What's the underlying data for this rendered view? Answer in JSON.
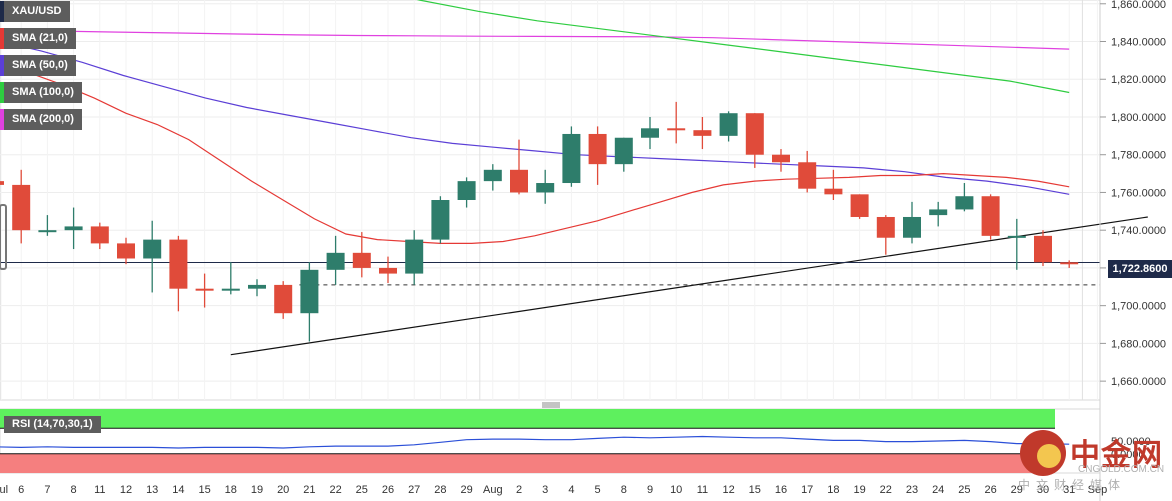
{
  "legend": {
    "symbol": "XAU/USD",
    "sma21": "SMA (21,0)",
    "sma50": "SMA (50,0)",
    "sma100": "SMA (100,0)",
    "sma200": "SMA (200,0)"
  },
  "rsi_label": "RSI (14,70,30,1)",
  "last_price_label": "1,722.8600",
  "colors": {
    "up": "#2e7d6b",
    "down": "#e04b3a",
    "sma21": "#e53935",
    "sma50": "#5b3fd6",
    "sma100": "#2ecc40",
    "sma200": "#e041e0",
    "rsi_line": "#2b4fd8",
    "overbought_zone": "#5ef05e",
    "oversold_zone": "#f57f7f"
  },
  "watermark": {
    "cn": "中金网",
    "en": "CNGOLD.COM.CN",
    "sub": "中文财经媒体"
  },
  "chart_data": {
    "type": "candlestick",
    "y_range": [
      1650,
      1862
    ],
    "y_ticks": [
      1660,
      1680,
      1700,
      1720,
      1740,
      1760,
      1780,
      1800,
      1820,
      1840,
      1860
    ],
    "y_tick_labels": [
      "1,660.0000",
      "1,680.0000",
      "1,700.0000",
      "1,720.0000",
      "1,740.0000",
      "1,760.0000",
      "1,780.0000",
      "1,800.0000",
      "1,820.0000",
      "1,840.0000",
      "1,860.0000"
    ],
    "x_labels": [
      "Jul",
      "6",
      "7",
      "8",
      "11",
      "12",
      "13",
      "14",
      "15",
      "18",
      "19",
      "20",
      "21",
      "22",
      "25",
      "26",
      "27",
      "28",
      "29",
      "Aug",
      "2",
      "3",
      "4",
      "5",
      "8",
      "9",
      "10",
      "11",
      "12",
      "15",
      "16",
      "17",
      "18",
      "19",
      "22",
      "23",
      "24",
      "25",
      "26",
      "29",
      "30",
      "31",
      "Sep"
    ],
    "candles": [
      {
        "date": "5",
        "o": 1766,
        "h": 1774,
        "l": 1733,
        "c": 1764
      },
      {
        "date": "6",
        "o": 1764,
        "h": 1772,
        "l": 1733,
        "c": 1740
      },
      {
        "date": "7",
        "o": 1740,
        "h": 1748,
        "l": 1737,
        "c": 1740
      },
      {
        "date": "8",
        "o": 1740,
        "h": 1752,
        "l": 1730,
        "c": 1742
      },
      {
        "date": "11",
        "o": 1742,
        "h": 1744,
        "l": 1730,
        "c": 1733
      },
      {
        "date": "12",
        "o": 1733,
        "h": 1736,
        "l": 1722,
        "c": 1725
      },
      {
        "date": "13",
        "o": 1725,
        "h": 1745,
        "l": 1707,
        "c": 1735
      },
      {
        "date": "14",
        "o": 1735,
        "h": 1737,
        "l": 1697,
        "c": 1709
      },
      {
        "date": "15",
        "o": 1709,
        "h": 1717,
        "l": 1699,
        "c": 1708
      },
      {
        "date": "18",
        "o": 1708,
        "h": 1723,
        "l": 1706,
        "c": 1709
      },
      {
        "date": "19",
        "o": 1709,
        "h": 1714,
        "l": 1705,
        "c": 1711
      },
      {
        "date": "20",
        "o": 1711,
        "h": 1713,
        "l": 1693,
        "c": 1696
      },
      {
        "date": "21",
        "o": 1696,
        "h": 1723,
        "l": 1681,
        "c": 1719
      },
      {
        "date": "22",
        "o": 1719,
        "h": 1737,
        "l": 1711,
        "c": 1728
      },
      {
        "date": "25",
        "o": 1728,
        "h": 1739,
        "l": 1715,
        "c": 1720
      },
      {
        "date": "26",
        "o": 1720,
        "h": 1726,
        "l": 1712,
        "c": 1717
      },
      {
        "date": "27",
        "o": 1717,
        "h": 1740,
        "l": 1711,
        "c": 1735
      },
      {
        "date": "28",
        "o": 1735,
        "h": 1758,
        "l": 1733,
        "c": 1756
      },
      {
        "date": "29",
        "o": 1756,
        "h": 1768,
        "l": 1752,
        "c": 1766
      },
      {
        "date": "1",
        "o": 1766,
        "h": 1775,
        "l": 1761,
        "c": 1772
      },
      {
        "date": "2",
        "o": 1772,
        "h": 1788,
        "l": 1759,
        "c": 1760
      },
      {
        "date": "3",
        "o": 1760,
        "h": 1772,
        "l": 1754,
        "c": 1765
      },
      {
        "date": "4",
        "o": 1765,
        "h": 1795,
        "l": 1763,
        "c": 1791
      },
      {
        "date": "5",
        "o": 1791,
        "h": 1795,
        "l": 1764,
        "c": 1775
      },
      {
        "date": "8",
        "o": 1775,
        "h": 1789,
        "l": 1771,
        "c": 1789
      },
      {
        "date": "9",
        "o": 1789,
        "h": 1800,
        "l": 1783,
        "c": 1794
      },
      {
        "date": "10",
        "o": 1794,
        "h": 1808,
        "l": 1786,
        "c": 1793
      },
      {
        "date": "11",
        "o": 1793,
        "h": 1800,
        "l": 1783,
        "c": 1790
      },
      {
        "date": "12",
        "o": 1790,
        "h": 1803,
        "l": 1787,
        "c": 1802
      },
      {
        "date": "15",
        "o": 1802,
        "h": 1802,
        "l": 1773,
        "c": 1780
      },
      {
        "date": "16",
        "o": 1780,
        "h": 1783,
        "l": 1771,
        "c": 1776
      },
      {
        "date": "17",
        "o": 1776,
        "h": 1782,
        "l": 1760,
        "c": 1762
      },
      {
        "date": "18",
        "o": 1762,
        "h": 1772,
        "l": 1756,
        "c": 1759
      },
      {
        "date": "19",
        "o": 1759,
        "h": 1759,
        "l": 1746,
        "c": 1747
      },
      {
        "date": "22",
        "o": 1747,
        "h": 1748,
        "l": 1727,
        "c": 1736
      },
      {
        "date": "23",
        "o": 1736,
        "h": 1755,
        "l": 1733,
        "c": 1747
      },
      {
        "date": "24",
        "o": 1748,
        "h": 1755,
        "l": 1742,
        "c": 1751
      },
      {
        "date": "25",
        "o": 1751,
        "h": 1765,
        "l": 1750,
        "c": 1758
      },
      {
        "date": "26",
        "o": 1758,
        "h": 1759,
        "l": 1735,
        "c": 1737
      },
      {
        "date": "29",
        "o": 1737,
        "h": 1746,
        "l": 1719,
        "c": 1737
      },
      {
        "date": "30",
        "o": 1737,
        "h": 1740,
        "l": 1721,
        "c": 1723
      },
      {
        "date": "31",
        "o": 1723,
        "h": 1724,
        "l": 1720,
        "c": 1722.86
      }
    ],
    "sma21": [
      1825,
      1823,
      1817,
      1810,
      1802,
      1796,
      1788,
      1777,
      1766,
      1756,
      1746,
      1738,
      1735,
      1734,
      1733,
      1733,
      1734,
      1737,
      1741,
      1745,
      1750,
      1755,
      1760,
      1764,
      1766,
      1767,
      1767.5,
      1768,
      1769,
      1769,
      1770,
      1769,
      1768,
      1766,
      1763
    ],
    "sma50": [
      1840,
      1835,
      1829,
      1822,
      1816,
      1810,
      1805,
      1801,
      1797,
      1793,
      1789,
      1786,
      1784,
      1782,
      1780,
      1779,
      1778,
      1777,
      1776,
      1775,
      1774,
      1773,
      1771,
      1768,
      1766,
      1763,
      1759
    ],
    "sma100": [
      1870,
      1862,
      1856,
      1851,
      1847,
      1843,
      1839,
      1835,
      1831,
      1827,
      1823,
      1819,
      1813
    ],
    "sma200": [
      1846,
      1845.5,
      1845,
      1844.5,
      1844,
      1843.5,
      1843.2,
      1843,
      1842.8,
      1842.7,
      1842.6,
      1842.5,
      1842,
      1841,
      1840,
      1839,
      1838,
      1837,
      1836
    ],
    "support_line": {
      "from": [
        9,
        1674
      ],
      "to": [
        44,
        1747
      ]
    },
    "reference_level": 1711,
    "last_price": 1722.86,
    "rsi": {
      "label": "RSI (14,70,30,1)",
      "overbought": 70,
      "oversold": 30,
      "tick_label": "50.0000",
      "tick_label_low": "0.0000",
      "values": [
        41,
        40,
        41,
        40,
        40,
        40,
        40,
        39,
        40,
        40,
        40,
        39,
        41,
        42,
        42,
        42,
        44,
        48,
        52,
        53,
        53,
        52,
        52,
        54,
        56,
        55,
        56,
        57,
        56,
        55,
        55,
        53,
        51,
        51,
        49,
        49,
        50,
        51,
        49,
        46,
        46,
        45
      ]
    }
  }
}
